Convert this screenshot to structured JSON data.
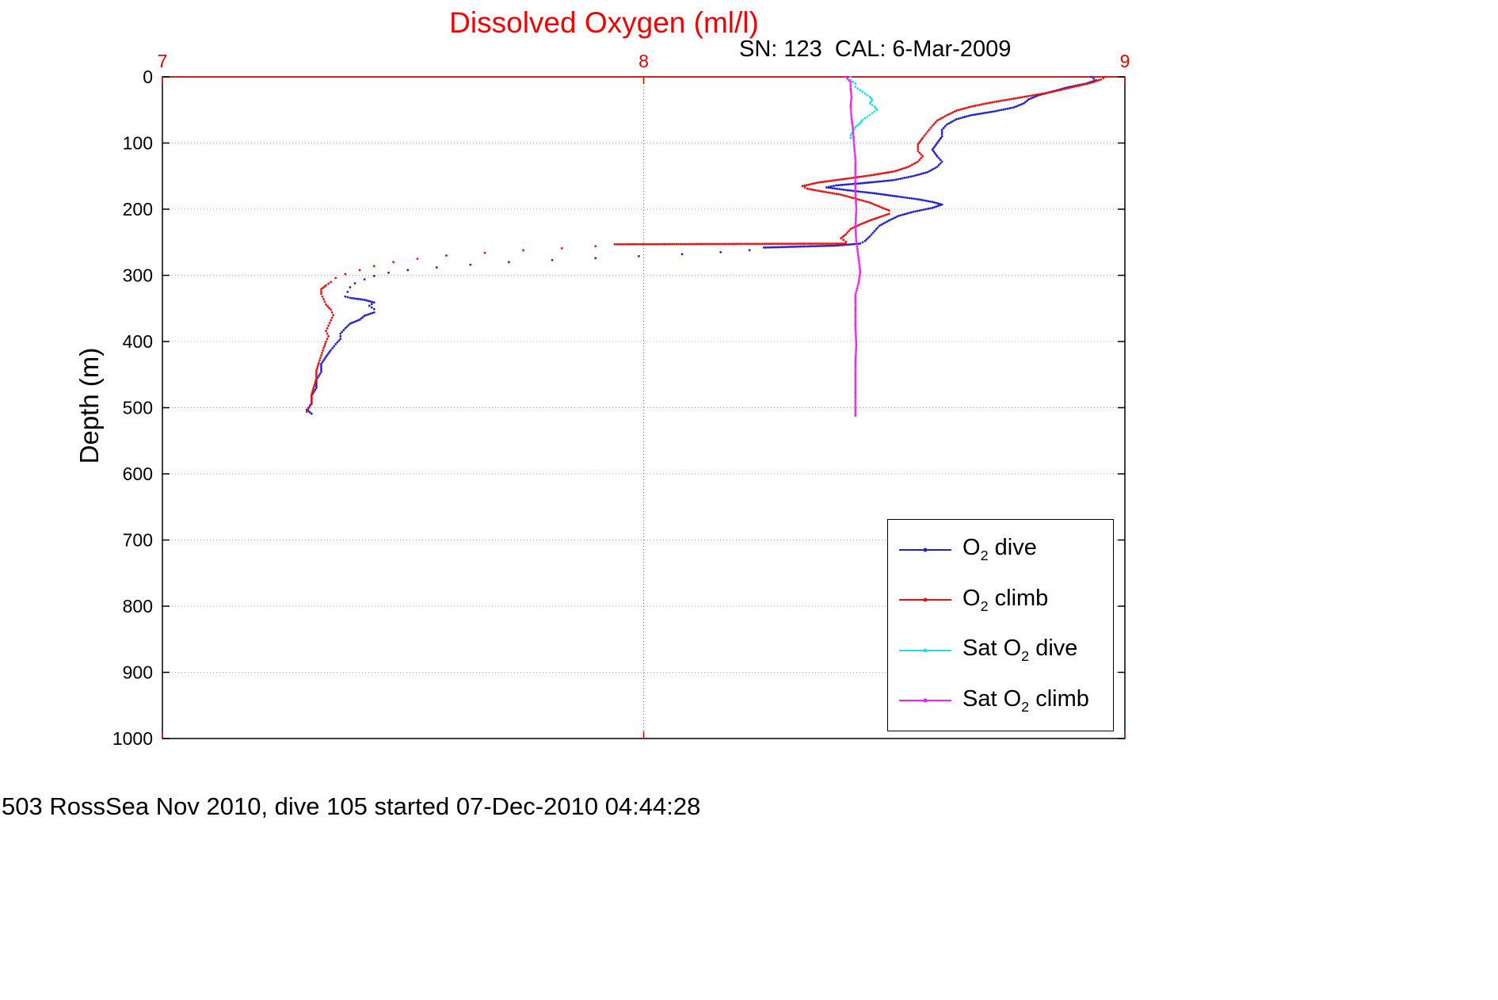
{
  "page": {
    "footer": "503 RossSea Nov 2010, dive 105 started 07-Dec-2010 04:44:28"
  },
  "chart_data": {
    "type": "scatter",
    "title": "Dissolved Oxygen (ml/l)",
    "title_color": "#f20000",
    "annotation": "SN: 123  CAL: 6-Mar-2009",
    "ylabel": "Depth (m)",
    "xlim": [
      7,
      9
    ],
    "ylim": [
      0,
      1000
    ],
    "xticks": [
      7,
      8,
      9
    ],
    "yticks": [
      0,
      100,
      200,
      300,
      400,
      500,
      600,
      700,
      800,
      900,
      1000
    ],
    "x_axis_color": "#e80000",
    "y_axis_color": "#000000",
    "grid": true,
    "legend_position": "bottom-right",
    "legend": [
      {
        "pre": "O",
        "sub": "2",
        "post": " dive",
        "color": "#2020cc"
      },
      {
        "pre": "O",
        "sub": "2",
        "post": " climb",
        "color": "#e81010"
      },
      {
        "pre": "Sat O",
        "sub": "2",
        "post": " dive",
        "color": "#20dde0"
      },
      {
        "pre": "Sat O",
        "sub": "2",
        "post": " climb",
        "color": "#f020f0"
      }
    ],
    "series": [
      {
        "name": "O2 dive",
        "color": "#2020cc",
        "sparse": [
          [
            257.9,
            332.5
          ]
        ],
        "points": [
          [
            8.93,
            0
          ],
          [
            8.94,
            5
          ],
          [
            8.92,
            10
          ],
          [
            8.88,
            16
          ],
          [
            8.85,
            22
          ],
          [
            8.82,
            28
          ],
          [
            8.8,
            34
          ],
          [
            8.79,
            40
          ],
          [
            8.77,
            46
          ],
          [
            8.73,
            52
          ],
          [
            8.68,
            58
          ],
          [
            8.65,
            64
          ],
          [
            8.63,
            72
          ],
          [
            8.62,
            80
          ],
          [
            8.62,
            90
          ],
          [
            8.61,
            100
          ],
          [
            8.6,
            110
          ],
          [
            8.61,
            120
          ],
          [
            8.62,
            128
          ],
          [
            8.61,
            136
          ],
          [
            8.59,
            144
          ],
          [
            8.56,
            150
          ],
          [
            8.52,
            156
          ],
          [
            8.45,
            161
          ],
          [
            8.4,
            164
          ],
          [
            8.38,
            167
          ],
          [
            8.42,
            171
          ],
          [
            8.48,
            176
          ],
          [
            8.53,
            181
          ],
          [
            8.57,
            185
          ],
          [
            8.6,
            189
          ],
          [
            8.62,
            193
          ],
          [
            8.6,
            198
          ],
          [
            8.56,
            204
          ],
          [
            8.53,
            210
          ],
          [
            8.51,
            217
          ],
          [
            8.49,
            225
          ],
          [
            8.48,
            233
          ],
          [
            8.47,
            241
          ],
          [
            8.46,
            248
          ],
          [
            8.45,
            252
          ],
          [
            8.4,
            255
          ],
          [
            8.35,
            256
          ],
          [
            8.3,
            257
          ],
          [
            8.25,
            258
          ],
          [
            8.22,
            262
          ],
          [
            8.16,
            265
          ],
          [
            8.08,
            268
          ],
          [
            7.99,
            271
          ],
          [
            7.9,
            274
          ],
          [
            7.81,
            277
          ],
          [
            7.72,
            280
          ],
          [
            7.64,
            284
          ],
          [
            7.57,
            288
          ],
          [
            7.51,
            292
          ],
          [
            7.47,
            296
          ],
          [
            7.44,
            301
          ],
          [
            7.42,
            306
          ],
          [
            7.4,
            312
          ],
          [
            7.39,
            318
          ],
          [
            7.385,
            325
          ],
          [
            7.38,
            332
          ],
          [
            7.39,
            334
          ],
          [
            7.42,
            337
          ],
          [
            7.44,
            341
          ],
          [
            7.43,
            346
          ],
          [
            7.44,
            351
          ],
          [
            7.44,
            356
          ],
          [
            7.42,
            361
          ],
          [
            7.41,
            367
          ],
          [
            7.39,
            373
          ],
          [
            7.38,
            380
          ],
          [
            7.37,
            388
          ],
          [
            7.37,
            396
          ],
          [
            7.36,
            404
          ],
          [
            7.35,
            413
          ],
          [
            7.34,
            423
          ],
          [
            7.33,
            434
          ],
          [
            7.33,
            446
          ],
          [
            7.32,
            458
          ],
          [
            7.32,
            470
          ],
          [
            7.31,
            482
          ],
          [
            7.31,
            494
          ],
          [
            7.3,
            503
          ],
          [
            7.31,
            509
          ]
        ]
      },
      {
        "name": "O2 climb",
        "color": "#e81010",
        "sparse": [
          [
            252.9,
            311
          ]
        ],
        "points": [
          [
            8.96,
            0
          ],
          [
            8.95,
            4
          ],
          [
            8.93,
            9
          ],
          [
            8.9,
            14
          ],
          [
            8.87,
            19
          ],
          [
            8.84,
            24
          ],
          [
            8.8,
            29
          ],
          [
            8.76,
            34
          ],
          [
            8.72,
            39
          ],
          [
            8.68,
            45
          ],
          [
            8.65,
            51
          ],
          [
            8.63,
            58
          ],
          [
            8.61,
            66
          ],
          [
            8.6,
            74
          ],
          [
            8.59,
            83
          ],
          [
            8.58,
            92
          ],
          [
            8.57,
            102
          ],
          [
            8.57,
            112
          ],
          [
            8.58,
            120
          ],
          [
            8.57,
            128
          ],
          [
            8.55,
            136
          ],
          [
            8.52,
            143
          ],
          [
            8.47,
            149
          ],
          [
            8.41,
            155
          ],
          [
            8.36,
            160
          ],
          [
            8.33,
            165
          ],
          [
            8.34,
            169
          ],
          [
            8.37,
            173
          ],
          [
            8.41,
            178
          ],
          [
            8.44,
            184
          ],
          [
            8.47,
            190
          ],
          [
            8.49,
            196
          ],
          [
            8.51,
            202
          ],
          [
            8.51,
            207
          ],
          [
            8.49,
            212
          ],
          [
            8.47,
            217
          ],
          [
            8.45,
            223
          ],
          [
            8.43,
            230
          ],
          [
            8.42,
            238
          ],
          [
            8.41,
            244
          ],
          [
            8.42,
            249
          ],
          [
            8.42,
            252
          ],
          [
            7.94,
            253
          ],
          [
            7.9,
            256
          ],
          [
            7.83,
            259
          ],
          [
            7.75,
            262
          ],
          [
            7.67,
            266
          ],
          [
            7.59,
            270
          ],
          [
            7.53,
            275
          ],
          [
            7.48,
            280
          ],
          [
            7.44,
            286
          ],
          [
            7.41,
            292
          ],
          [
            7.38,
            298
          ],
          [
            7.36,
            304
          ],
          [
            7.35,
            310
          ],
          [
            7.34,
            315
          ],
          [
            7.33,
            321
          ],
          [
            7.33,
            328
          ],
          [
            7.335,
            336
          ],
          [
            7.34,
            344
          ],
          [
            7.35,
            352
          ],
          [
            7.355,
            360
          ],
          [
            7.35,
            368
          ],
          [
            7.345,
            376
          ],
          [
            7.34,
            384
          ],
          [
            7.345,
            392
          ],
          [
            7.34,
            400
          ],
          [
            7.335,
            410
          ],
          [
            7.33,
            421
          ],
          [
            7.325,
            432
          ],
          [
            7.32,
            444
          ],
          [
            7.32,
            456
          ],
          [
            7.315,
            468
          ],
          [
            7.31,
            480
          ],
          [
            7.31,
            492
          ],
          [
            7.305,
            500
          ],
          [
            7.3,
            506
          ]
        ]
      },
      {
        "name": "Sat O2 dive",
        "color": "#20dde0",
        "points": [
          [
            8.43,
            0
          ],
          [
            8.43,
            5
          ],
          [
            8.44,
            10
          ],
          [
            8.44,
            15
          ],
          [
            8.45,
            20
          ],
          [
            8.46,
            25
          ],
          [
            8.47,
            30
          ],
          [
            8.475,
            35
          ],
          [
            8.47,
            40
          ],
          [
            8.48,
            45
          ],
          [
            8.485,
            50
          ],
          [
            8.475,
            55
          ],
          [
            8.465,
            60
          ],
          [
            8.455,
            65
          ],
          [
            8.45,
            70
          ],
          [
            8.44,
            76
          ],
          [
            8.435,
            82
          ],
          [
            8.43,
            88
          ],
          [
            8.43,
            92
          ]
        ]
      },
      {
        "name": "Sat O2 climb",
        "color": "#f020f0",
        "points": [
          [
            8.42,
            0
          ],
          [
            8.43,
            8
          ],
          [
            8.43,
            18
          ],
          [
            8.432,
            30
          ],
          [
            8.43,
            45
          ],
          [
            8.432,
            62
          ],
          [
            8.435,
            80
          ],
          [
            8.437,
            100
          ],
          [
            8.44,
            125
          ],
          [
            8.44,
            150
          ],
          [
            8.44,
            175
          ],
          [
            8.442,
            200
          ],
          [
            8.44,
            225
          ],
          [
            8.442,
            250
          ],
          [
            8.446,
            270
          ],
          [
            8.45,
            295
          ],
          [
            8.447,
            310
          ],
          [
            8.44,
            330
          ],
          [
            8.44,
            355
          ],
          [
            8.44,
            380
          ],
          [
            8.442,
            405
          ],
          [
            8.44,
            430
          ],
          [
            8.44,
            455
          ],
          [
            8.44,
            480
          ],
          [
            8.44,
            500
          ],
          [
            8.44,
            512
          ]
        ]
      }
    ]
  }
}
